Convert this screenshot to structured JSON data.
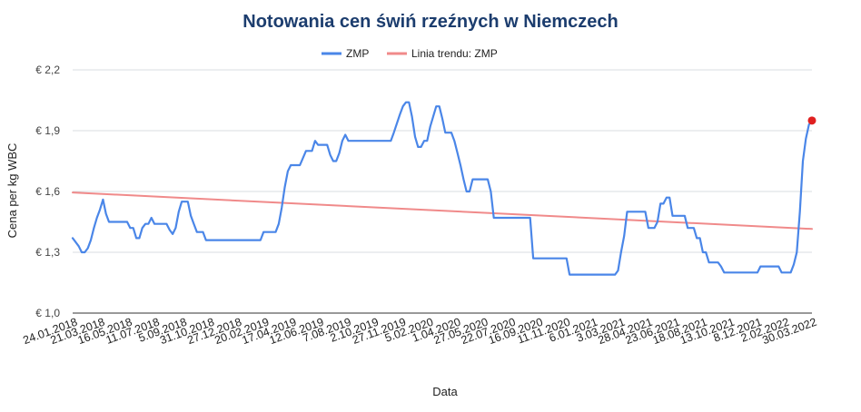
{
  "chart_data": {
    "type": "line",
    "title": "Notowania cen świń rzeźnych w Niemczech",
    "xlabel": "Data",
    "ylabel": "Cena per kg WBC",
    "ylim": [
      1.0,
      2.2
    ],
    "yticks": [
      "€ 1,0",
      "€ 1,3",
      "€ 1,6",
      "€ 1,9",
      "€ 2,2"
    ],
    "ytick_values": [
      1.0,
      1.3,
      1.6,
      1.9,
      2.2
    ],
    "grid": true,
    "legend_position": "top",
    "x_tick_labels": [
      "24.01.2018",
      "21.03.2018",
      "16.05.2018",
      "11.07.2018",
      "5.09.2018",
      "31.10.2018",
      "27.12.2018",
      "20.02.2019",
      "17.04.2019",
      "12.06.2019",
      "7.08.2019",
      "2.10.2019",
      "27.11.2019",
      "5.02.2020",
      "1.04.2020",
      "27.05.2020",
      "22.07.2020",
      "16.09.2020",
      "11.11.2020",
      "6.01.2021",
      "3.03.2021",
      "28.04.2021",
      "23.06.2021",
      "18.08.2021",
      "13.10.2021",
      "8.12.2021",
      "2.02.2022",
      "30.03.2022"
    ],
    "series": [
      {
        "name": "ZMP",
        "color": "#4a86e8",
        "points": [
          [
            0,
            1.37
          ],
          [
            2,
            1.33
          ],
          [
            3,
            1.3
          ],
          [
            4,
            1.3
          ],
          [
            5,
            1.32
          ],
          [
            6,
            1.36
          ],
          [
            7,
            1.42
          ],
          [
            8,
            1.47
          ],
          [
            9,
            1.51
          ],
          [
            10,
            1.56
          ],
          [
            11,
            1.49
          ],
          [
            12,
            1.45
          ],
          [
            16,
            1.45
          ],
          [
            18,
            1.45
          ],
          [
            19,
            1.42
          ],
          [
            20,
            1.42
          ],
          [
            21,
            1.37
          ],
          [
            22,
            1.37
          ],
          [
            23,
            1.42
          ],
          [
            24,
            1.44
          ],
          [
            25,
            1.44
          ],
          [
            26,
            1.47
          ],
          [
            27,
            1.44
          ],
          [
            31,
            1.44
          ],
          [
            32,
            1.41
          ],
          [
            33,
            1.39
          ],
          [
            34,
            1.42
          ],
          [
            35,
            1.5
          ],
          [
            36,
            1.55
          ],
          [
            38,
            1.55
          ],
          [
            39,
            1.48
          ],
          [
            40,
            1.44
          ],
          [
            41,
            1.4
          ],
          [
            43,
            1.4
          ],
          [
            44,
            1.36
          ],
          [
            62,
            1.36
          ],
          [
            63,
            1.4
          ],
          [
            67,
            1.4
          ],
          [
            68,
            1.44
          ],
          [
            69,
            1.52
          ],
          [
            70,
            1.62
          ],
          [
            71,
            1.7
          ],
          [
            72,
            1.73
          ],
          [
            75,
            1.73
          ],
          [
            77,
            1.8
          ],
          [
            79,
            1.8
          ],
          [
            80,
            1.85
          ],
          [
            81,
            1.83
          ],
          [
            84,
            1.83
          ],
          [
            85,
            1.78
          ],
          [
            86,
            1.75
          ],
          [
            87,
            1.75
          ],
          [
            88,
            1.79
          ],
          [
            89,
            1.85
          ],
          [
            90,
            1.88
          ],
          [
            91,
            1.85
          ],
          [
            105,
            1.85
          ],
          [
            106,
            1.89
          ],
          [
            108,
            1.98
          ],
          [
            109,
            2.02
          ],
          [
            110,
            2.04
          ],
          [
            111,
            2.04
          ],
          [
            112,
            1.97
          ],
          [
            113,
            1.87
          ],
          [
            114,
            1.82
          ],
          [
            115,
            1.82
          ],
          [
            116,
            1.85
          ],
          [
            117,
            1.85
          ],
          [
            118,
            1.92
          ],
          [
            120,
            2.02
          ],
          [
            121,
            2.02
          ],
          [
            122,
            1.96
          ],
          [
            123,
            1.89
          ],
          [
            125,
            1.89
          ],
          [
            126,
            1.85
          ],
          [
            127,
            1.79
          ],
          [
            128,
            1.73
          ],
          [
            129,
            1.66
          ],
          [
            130,
            1.6
          ],
          [
            131,
            1.6
          ],
          [
            132,
            1.66
          ],
          [
            137,
            1.66
          ],
          [
            138,
            1.6
          ],
          [
            139,
            1.47
          ],
          [
            151,
            1.47
          ],
          [
            152,
            1.27
          ],
          [
            163,
            1.27
          ],
          [
            164,
            1.19
          ],
          [
            179,
            1.19
          ],
          [
            180,
            1.21
          ],
          [
            181,
            1.3
          ],
          [
            182,
            1.38
          ],
          [
            183,
            1.5
          ],
          [
            189,
            1.5
          ],
          [
            190,
            1.42
          ],
          [
            192,
            1.42
          ],
          [
            193,
            1.45
          ],
          [
            194,
            1.54
          ],
          [
            195,
            1.54
          ],
          [
            196,
            1.57
          ],
          [
            197,
            1.57
          ],
          [
            198,
            1.48
          ],
          [
            202,
            1.48
          ],
          [
            203,
            1.42
          ],
          [
            205,
            1.42
          ],
          [
            206,
            1.37
          ],
          [
            207,
            1.37
          ],
          [
            208,
            1.3
          ],
          [
            209,
            1.3
          ],
          [
            210,
            1.25
          ],
          [
            213,
            1.25
          ],
          [
            214,
            1.23
          ],
          [
            215,
            1.2
          ],
          [
            226,
            1.2
          ],
          [
            227,
            1.23
          ],
          [
            233,
            1.23
          ],
          [
            234,
            1.2
          ],
          [
            237,
            1.2
          ],
          [
            238,
            1.24
          ],
          [
            239,
            1.3
          ],
          [
            240,
            1.5
          ],
          [
            241,
            1.75
          ],
          [
            242,
            1.86
          ],
          [
            243,
            1.93
          ],
          [
            244,
            1.95
          ]
        ],
        "last_point_marker": true
      },
      {
        "name": "Linia trendu: ZMP",
        "color": "#f08a8a",
        "points": [
          [
            0,
            1.595
          ],
          [
            244,
            1.415
          ]
        ]
      }
    ]
  }
}
